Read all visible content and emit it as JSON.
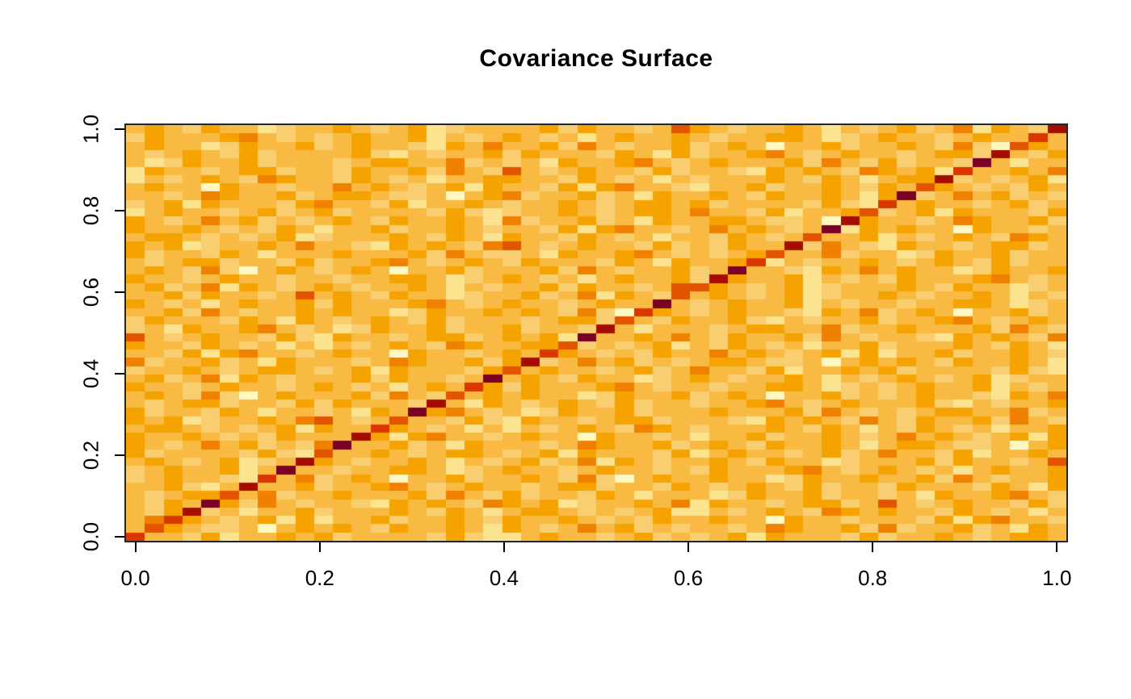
{
  "page": {
    "background": "#ffffff"
  },
  "chart_data": {
    "type": "heatmap",
    "title": "Covariance Surface",
    "xlabel": "",
    "ylabel": "",
    "xlim": [
      0.0,
      1.0
    ],
    "ylim": [
      0.0,
      1.0
    ],
    "grid_on": false,
    "legend": "none",
    "x_axis": {
      "tick_values": [
        0.0,
        0.2,
        0.4,
        0.6,
        0.8,
        1.0
      ],
      "tick_labels": [
        "0.0",
        "0.2",
        "0.4",
        "0.6",
        "0.8",
        "1.0"
      ]
    },
    "y_axis": {
      "tick_values": [
        0.0,
        0.2,
        0.4,
        0.6,
        0.8,
        1.0
      ],
      "tick_labels": [
        "0.0",
        "0.2",
        "0.4",
        "0.6",
        "0.8",
        "1.0"
      ]
    },
    "grid_size": 50,
    "axis_color": "#000000",
    "border_color": "#262626",
    "palette": [
      "#FFF8C2",
      "#FCE38F",
      "#F8CE71",
      "#F8BA43",
      "#F5A301",
      "#F08000",
      "#E25400",
      "#D93600",
      "#A50D00",
      "#7B0026"
    ],
    "palette_meaning": "index 0 = lowest covariance (pale yellow), index 9 = highest covariance (dark maroon); background noise ~ indices 0-6, diagonal ridge ~ indices 6-9",
    "diagonal": [
      7,
      6,
      7,
      8,
      9,
      6,
      8,
      7,
      9,
      8,
      6,
      9,
      8,
      7,
      6,
      9,
      8,
      6,
      7,
      9,
      6,
      8,
      7,
      6,
      9,
      8,
      6,
      7,
      9,
      6,
      6,
      8,
      9,
      7,
      6,
      8,
      6,
      9,
      8,
      6,
      7,
      9,
      6,
      8,
      7,
      9,
      8,
      6,
      7,
      8
    ],
    "rows_order": "top-to-bottom (first row = y=1.0)",
    "rows": [
      "34324331233432341233334243323643233431323423514323",
      "24333453232343341323432313433432334431234332343323",
      "34331243342343321435334253233423430334233432520343",
      "32343242333342132334243332431423345323433234423324",
      "31243342333234433523231433453234333425324233243133",
      "14332344233243342532632343324233214343254341233435",
      "13234325433243231334433243231323334324313443232341",
      "34330433233534323414332414533213342334324334323243",
      "33235433423443223034523342314334324334314323534232",
      "23414333245332413343233432344342333324211343323423",
      "13433234234233332421233432344353324133432341433324",
      "43235342323432433431523342314334432230343323543342",
      "43343232431334233432332414533235343234143433043323",
      "34432323412333432431433243231332432313341323432543",
      "43412334353321434325632343324232433425321433234423",
      "42332431333433342532231433453232344335233124334233",
      "32344233242334532343243332431433421323343234324233",
      "34325203432343033423334253233423433214353433124334",
      "43323433233233443123432313433423433413232433345323",
      "34235143234323343132334243323634323412333432433123",
      "33424332363432433123342351432334323412334323343132",
      "43231343342433345323433234332323433413233233443123",
      "33425323343433124334343252034323433214352343033423",
      "24333243143234324233323442332433421323342334532343",
      "23143345323124334233423324313332344335233433342532",
      "63234332421433234423434123343532433425323321434325",
      "43324323131323432543344323234132432313342333432431",
      "33241453323433043323433432324335343234141334233432",
      "52334231433323543342432353423234432230343432433431",
      "23343234432341433324134332342353324133434233332421",
      "34235143233342433236343243312343233431323432341233",
      "43323433234323134334243334532332334431232343341323",
      "34325203433342532334343312433423430334232343321435",
      "32344233242433324314323432423323345323433342132334",
      "42332431332314334532312433423334333425323234433523",
      "43412334356323433242143323442333214343253243342532",
      "34432323414332432313132343254323334324313243231334",
      "43343232433324145332343304332313342334323534323414",
      "43235342325233423143332354334234324334313443223034",
      "42333324212334323443234143332413433234235332413343",
      "34323412334323343132342351432334324331233342433236",
      "23433413233233443123433234332324333453234323134334",
      "23433214352343033423343252034334331243343342532334",
      "33421323342334532343323442332432343242332433324314",
      "32344335233433342532423324313331243342332314334532",
      "32433425323321434325434123343514332344236323433242",
      "32432313342333432431344323234113234325434332432313",
      "35343234141334233432433432324334330433233324145332",
      "34432230343432433431432353423233235433425233423143",
      "53324133434233332421134332342323414333242334323443"
    ]
  }
}
